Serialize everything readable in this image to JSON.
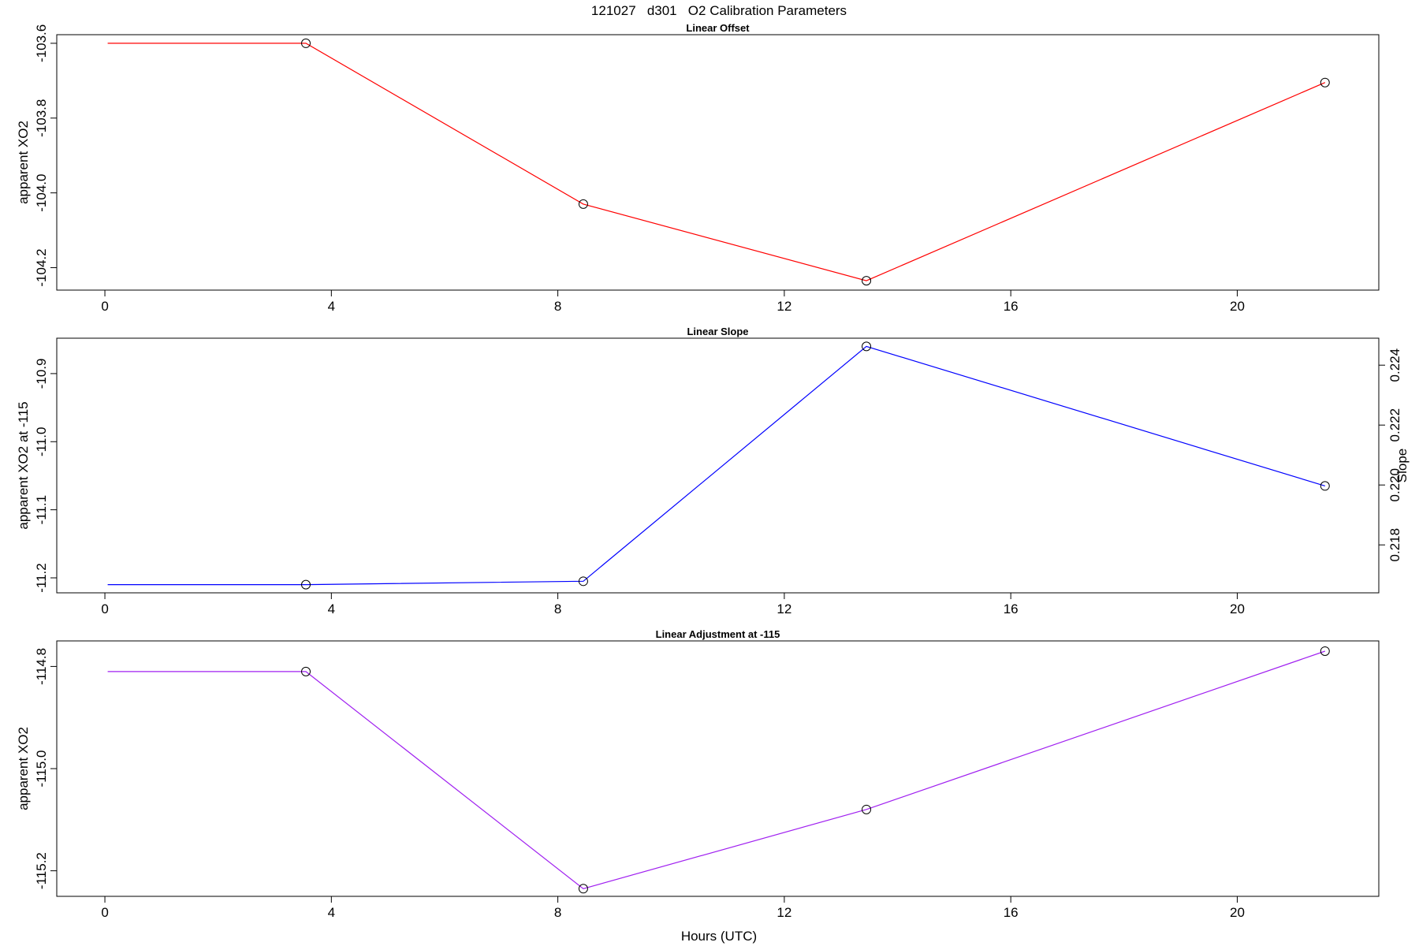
{
  "chart_data": {
    "title": "121027   d301   O2 Calibration Parameters",
    "xlabel": "Hours (UTC)",
    "panels": [
      {
        "type": "line",
        "title": "Linear Offset",
        "ylabel": "apparent XO2",
        "color": "#ff0000",
        "x": [
          0.05,
          3.55,
          8.45,
          13.45,
          21.55
        ],
        "y": [
          -103.6,
          -103.6,
          -104.03,
          -104.235,
          -103.705
        ],
        "marker_from_index": 1,
        "xlim": [
          -0.85,
          22.5
        ],
        "ylim": [
          -104.26,
          -103.577
        ],
        "xticks": [
          0,
          4,
          8,
          12,
          16,
          20
        ],
        "yticks": [
          -103.6,
          -103.8,
          -104.0,
          -104.2
        ],
        "ytick_labels": [
          "-103.6",
          "-103.8",
          "-104.0",
          "-104.2"
        ]
      },
      {
        "type": "line",
        "title": "Linear Slope",
        "ylabel": "apparent XO2 at -115",
        "y2label": "Slope",
        "color": "#0000ff",
        "x": [
          0.05,
          3.55,
          8.45,
          13.45,
          21.55
        ],
        "y": [
          -11.21,
          -11.21,
          -11.205,
          -10.86,
          -11.065
        ],
        "y2": [
          0.217,
          0.217,
          0.2171,
          0.2244,
          0.2199
        ],
        "marker_from_index": 1,
        "xlim": [
          -0.85,
          22.5
        ],
        "ylim": [
          -11.222,
          -10.848
        ],
        "xticks": [
          0,
          4,
          8,
          12,
          16,
          20
        ],
        "yticks": [
          -10.9,
          -11.0,
          -11.1,
          -11.2
        ],
        "ytick_labels": [
          "-10.9",
          "-11.0",
          "-11.1",
          "-11.2"
        ],
        "y2lim": [
          0.2164,
          0.2249
        ],
        "y2ticks": [
          0.218,
          0.22,
          0.222,
          0.224
        ],
        "y2tick_labels": [
          "0.218",
          "0.220",
          "0.222",
          "0.224"
        ]
      },
      {
        "type": "line",
        "title": "Linear Adjustment at -115",
        "ylabel": "apparent XO2",
        "color": "#a020f0",
        "x": [
          0.05,
          3.55,
          8.45,
          13.45,
          21.55
        ],
        "y": [
          -114.81,
          -114.81,
          -115.235,
          -115.08,
          -114.77
        ],
        "marker_from_index": 1,
        "xlim": [
          -0.85,
          22.5
        ],
        "ylim": [
          -115.25,
          -114.75
        ],
        "xticks": [
          0,
          4,
          8,
          12,
          16,
          20
        ],
        "yticks": [
          -114.8,
          -115.0,
          -115.2
        ],
        "ytick_labels": [
          "-114.8",
          "-115.0",
          "-115.2"
        ]
      }
    ]
  }
}
